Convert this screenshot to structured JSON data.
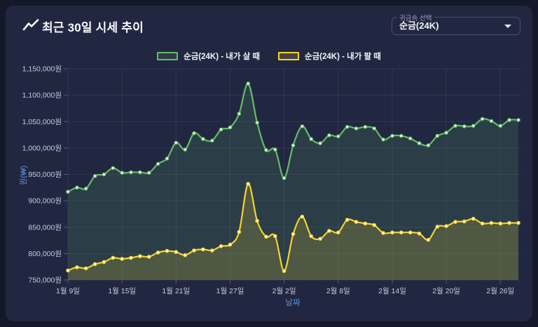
{
  "header": {
    "title": "최근 30일 시세 추이",
    "icon": "trending-up"
  },
  "selector": {
    "label": "귀금속 선택",
    "value": "순금(24K)",
    "caret_icon": "caret-down"
  },
  "legend": [
    {
      "label": "순금(24K) - 내가 살 때",
      "color": "#66bb6a"
    },
    {
      "label": "순금(24K) - 내가 팔 때",
      "color": "#f5d32f"
    }
  ],
  "colors": {
    "page_bg": "#141829",
    "card_bg": "#222741",
    "grid": "rgba(255,255,255,0.07)",
    "tick_mark": "rgba(255,255,255,0.25)",
    "tick_text": "#c6cbdc",
    "axis_title": "#5e90d6"
  },
  "chart_data": {
    "type": "line",
    "title": "최근 30일 시세 추이",
    "xlabel": "날짜",
    "ylabel": "원(₩)",
    "ylim": [
      750000,
      1150000
    ],
    "y_tick_step": 50000,
    "y_tick_labels": [
      "750,000원",
      "800,000원",
      "850,000원",
      "900,000원",
      "950,000원",
      "1,000,000원",
      "1,050,000원",
      "1,100,000원",
      "1,150,000원"
    ],
    "grid": true,
    "legend_position": "top",
    "x": [
      "1월 9일",
      "1월 10일",
      "1월 11일",
      "1월 12일",
      "1월 13일",
      "1월 14일",
      "1월 15일",
      "1월 16일",
      "1월 17일",
      "1월 18일",
      "1월 19일",
      "1월 20일",
      "1월 21일",
      "1월 22일",
      "1월 23일",
      "1월 24일",
      "1월 25일",
      "1월 26일",
      "1월 27일",
      "1월 28일",
      "1월 29일",
      "1월 30일",
      "1월 31일",
      "2월 1일",
      "2월 2일",
      "2월 3일",
      "2월 4일",
      "2월 5일",
      "2월 6일",
      "2월 7일",
      "2월 8일",
      "2월 9일",
      "2월 10일",
      "2월 11일",
      "2월 12일",
      "2월 13일",
      "2월 14일",
      "2월 15일",
      "2월 16일",
      "2월 17일",
      "2월 18일",
      "2월 19일",
      "2월 20일",
      "2월 21일",
      "2월 22일",
      "2월 23일",
      "2월 24일",
      "2월 25일",
      "2월 26일",
      "2월 27일",
      "2월 28일"
    ],
    "x_tick_indices": [
      0,
      6,
      12,
      18,
      24,
      30,
      36,
      42,
      48
    ],
    "series": [
      {
        "name": "순금(24K) - 내가 살 때",
        "color": "#66bb6a",
        "marker_fill": "#e9f6ea",
        "area": "rgba(102,187,106,0.15)",
        "values": [
          917000,
          925000,
          923000,
          947000,
          950000,
          962000,
          953000,
          954000,
          954000,
          953000,
          970000,
          980000,
          1010000,
          997000,
          1028000,
          1017000,
          1014000,
          1035000,
          1039000,
          1065000,
          1122000,
          1048000,
          996000,
          997000,
          943000,
          1005000,
          1041000,
          1017000,
          1009000,
          1024000,
          1022000,
          1040000,
          1037000,
          1040000,
          1037000,
          1016000,
          1023000,
          1023000,
          1018000,
          1009000,
          1005000,
          1023000,
          1029000,
          1042000,
          1041000,
          1042000,
          1055000,
          1051000,
          1042000,
          1053000,
          1053000
        ]
      },
      {
        "name": "순금(24K) - 내가 팔 때",
        "color": "#f5d32f",
        "marker_fill": "#fdf6cf",
        "area": "rgba(245,211,47,0.18)",
        "values": [
          768000,
          774000,
          772000,
          780000,
          784000,
          792000,
          790000,
          792000,
          795000,
          794000,
          802000,
          805000,
          803000,
          797000,
          806000,
          808000,
          806000,
          814000,
          817000,
          841000,
          932000,
          862000,
          832000,
          833000,
          767000,
          837000,
          870000,
          833000,
          828000,
          843000,
          840000,
          864000,
          860000,
          857000,
          854000,
          839000,
          840000,
          840000,
          840000,
          838000,
          826000,
          851000,
          852000,
          860000,
          861000,
          866000,
          857000,
          858000,
          857000,
          858000,
          858000
        ]
      }
    ]
  }
}
